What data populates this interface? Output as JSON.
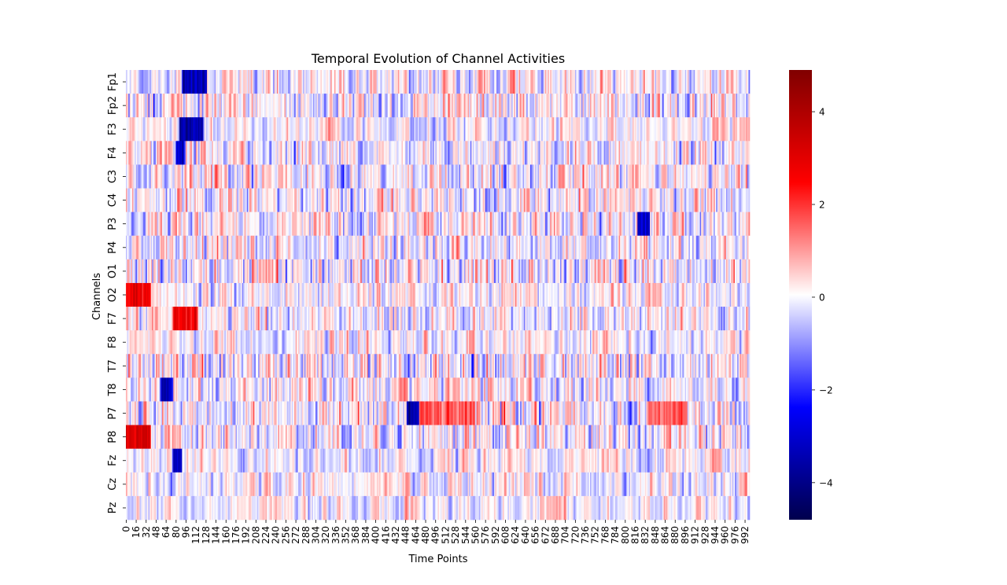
{
  "chart_data": {
    "type": "heatmap",
    "title": "Temporal Evolution of Channel Activities",
    "xlabel": "Time Points",
    "ylabel": "Channels",
    "channels": [
      "Fp1",
      "Fp2",
      "F3",
      "F4",
      "C3",
      "C4",
      "P3",
      "P4",
      "O1",
      "O2",
      "F7",
      "F8",
      "T7",
      "T8",
      "P7",
      "P8",
      "Fz",
      "Cz",
      "Pz"
    ],
    "n_time_points": 1000,
    "x_tick_labels": [
      "0",
      "16",
      "32",
      "48",
      "64",
      "80",
      "96",
      "112",
      "128",
      "144",
      "160",
      "176",
      "192",
      "208",
      "224",
      "240",
      "256",
      "272",
      "288",
      "304",
      "320",
      "336",
      "352",
      "368",
      "384",
      "400",
      "416",
      "432",
      "448",
      "464",
      "480",
      "496",
      "512",
      "528",
      "544",
      "560",
      "576",
      "592",
      "608",
      "624",
      "640",
      "656",
      "672",
      "688",
      "704",
      "720",
      "736",
      "752",
      "768",
      "784",
      "800",
      "816",
      "832",
      "848",
      "864",
      "880",
      "896",
      "912",
      "928",
      "944",
      "960",
      "976",
      "992"
    ],
    "colormap": "seismic",
    "colorbar": {
      "vmin": -4.8,
      "vmax": 4.9,
      "tick_values": [
        -4,
        -2,
        0,
        2,
        4
      ],
      "tick_labels": [
        "−4",
        "−2",
        "0",
        "2",
        "4"
      ]
    },
    "notable_features": [
      {
        "channel": "Fp1",
        "time_range": [
          90,
          130
        ],
        "value": -3.5
      },
      {
        "channel": "F3",
        "time_range": [
          85,
          125
        ],
        "value": -3.5
      },
      {
        "channel": "F4",
        "time_range": [
          80,
          95
        ],
        "value": -3.0
      },
      {
        "channel": "O2",
        "time_range": [
          0,
          40
        ],
        "value": 2.8
      },
      {
        "channel": "F7",
        "time_range": [
          75,
          115
        ],
        "value": 2.8
      },
      {
        "channel": "T8",
        "time_range": [
          55,
          75
        ],
        "value": -3.2
      },
      {
        "channel": "P7",
        "time_range": [
          450,
          470
        ],
        "value": -3.5
      },
      {
        "channel": "P7",
        "time_range": [
          470,
          560
        ],
        "value": 1.6
      },
      {
        "channel": "P8",
        "time_range": [
          0,
          40
        ],
        "value": 3.2
      },
      {
        "channel": "Fz",
        "time_range": [
          75,
          90
        ],
        "value": -3.2
      },
      {
        "channel": "P3",
        "time_range": [
          820,
          840
        ],
        "value": -3.0
      },
      {
        "channel": "P7",
        "time_range": [
          835,
          900
        ],
        "value": 1.6
      }
    ]
  }
}
